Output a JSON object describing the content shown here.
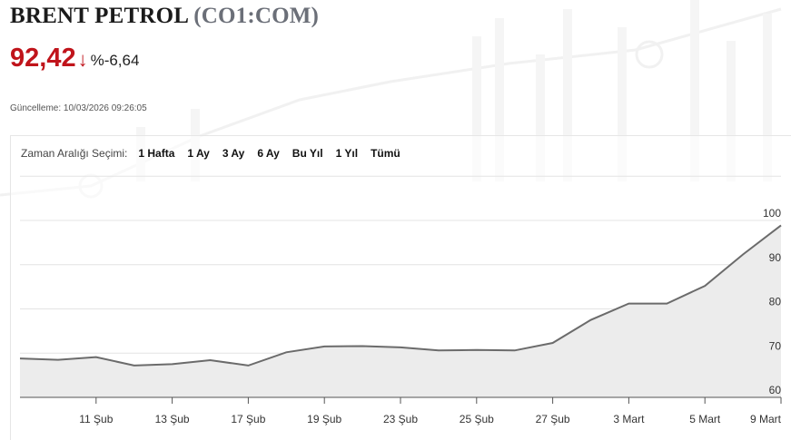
{
  "header": {
    "title_name": "BRENT PETROL",
    "title_code": "(CO1:COM)",
    "price": "92,42",
    "direction_icon": "arrow-down-icon",
    "change": "%-6,64",
    "updated": "Güncelleme: 10/03/2026 09:26:05",
    "price_color": "#c0141b"
  },
  "range_selector": {
    "label": "Zaman Aralığı Seçimi:",
    "options": [
      "1 Hafta",
      "1 Ay",
      "3 Ay",
      "6 Ay",
      "Bu Yıl",
      "1 Yıl",
      "Tümü"
    ]
  },
  "chart_data": {
    "type": "area",
    "x_tick_labels": [
      "11 Şub",
      "13 Şub",
      "17 Şub",
      "19 Şub",
      "23 Şub",
      "25 Şub",
      "27 Şub",
      "3 Mart",
      "5 Mart",
      "9 Mart"
    ],
    "y_tick_labels": [
      "60",
      "70",
      "80",
      "90",
      "100"
    ],
    "ylim": [
      60,
      100
    ],
    "y_ticks": [
      60,
      70,
      80,
      90,
      100
    ],
    "values": [
      68.8,
      68.5,
      69.1,
      67.2,
      67.5,
      68.4,
      67.2,
      70.2,
      71.5,
      71.6,
      71.3,
      70.6,
      70.7,
      70.6,
      72.3,
      77.5,
      81.2,
      81.2,
      85.2,
      92.3,
      98.9
    ],
    "line_color": "#6b6b6b",
    "fill_color": "#ececec",
    "grid": true
  }
}
